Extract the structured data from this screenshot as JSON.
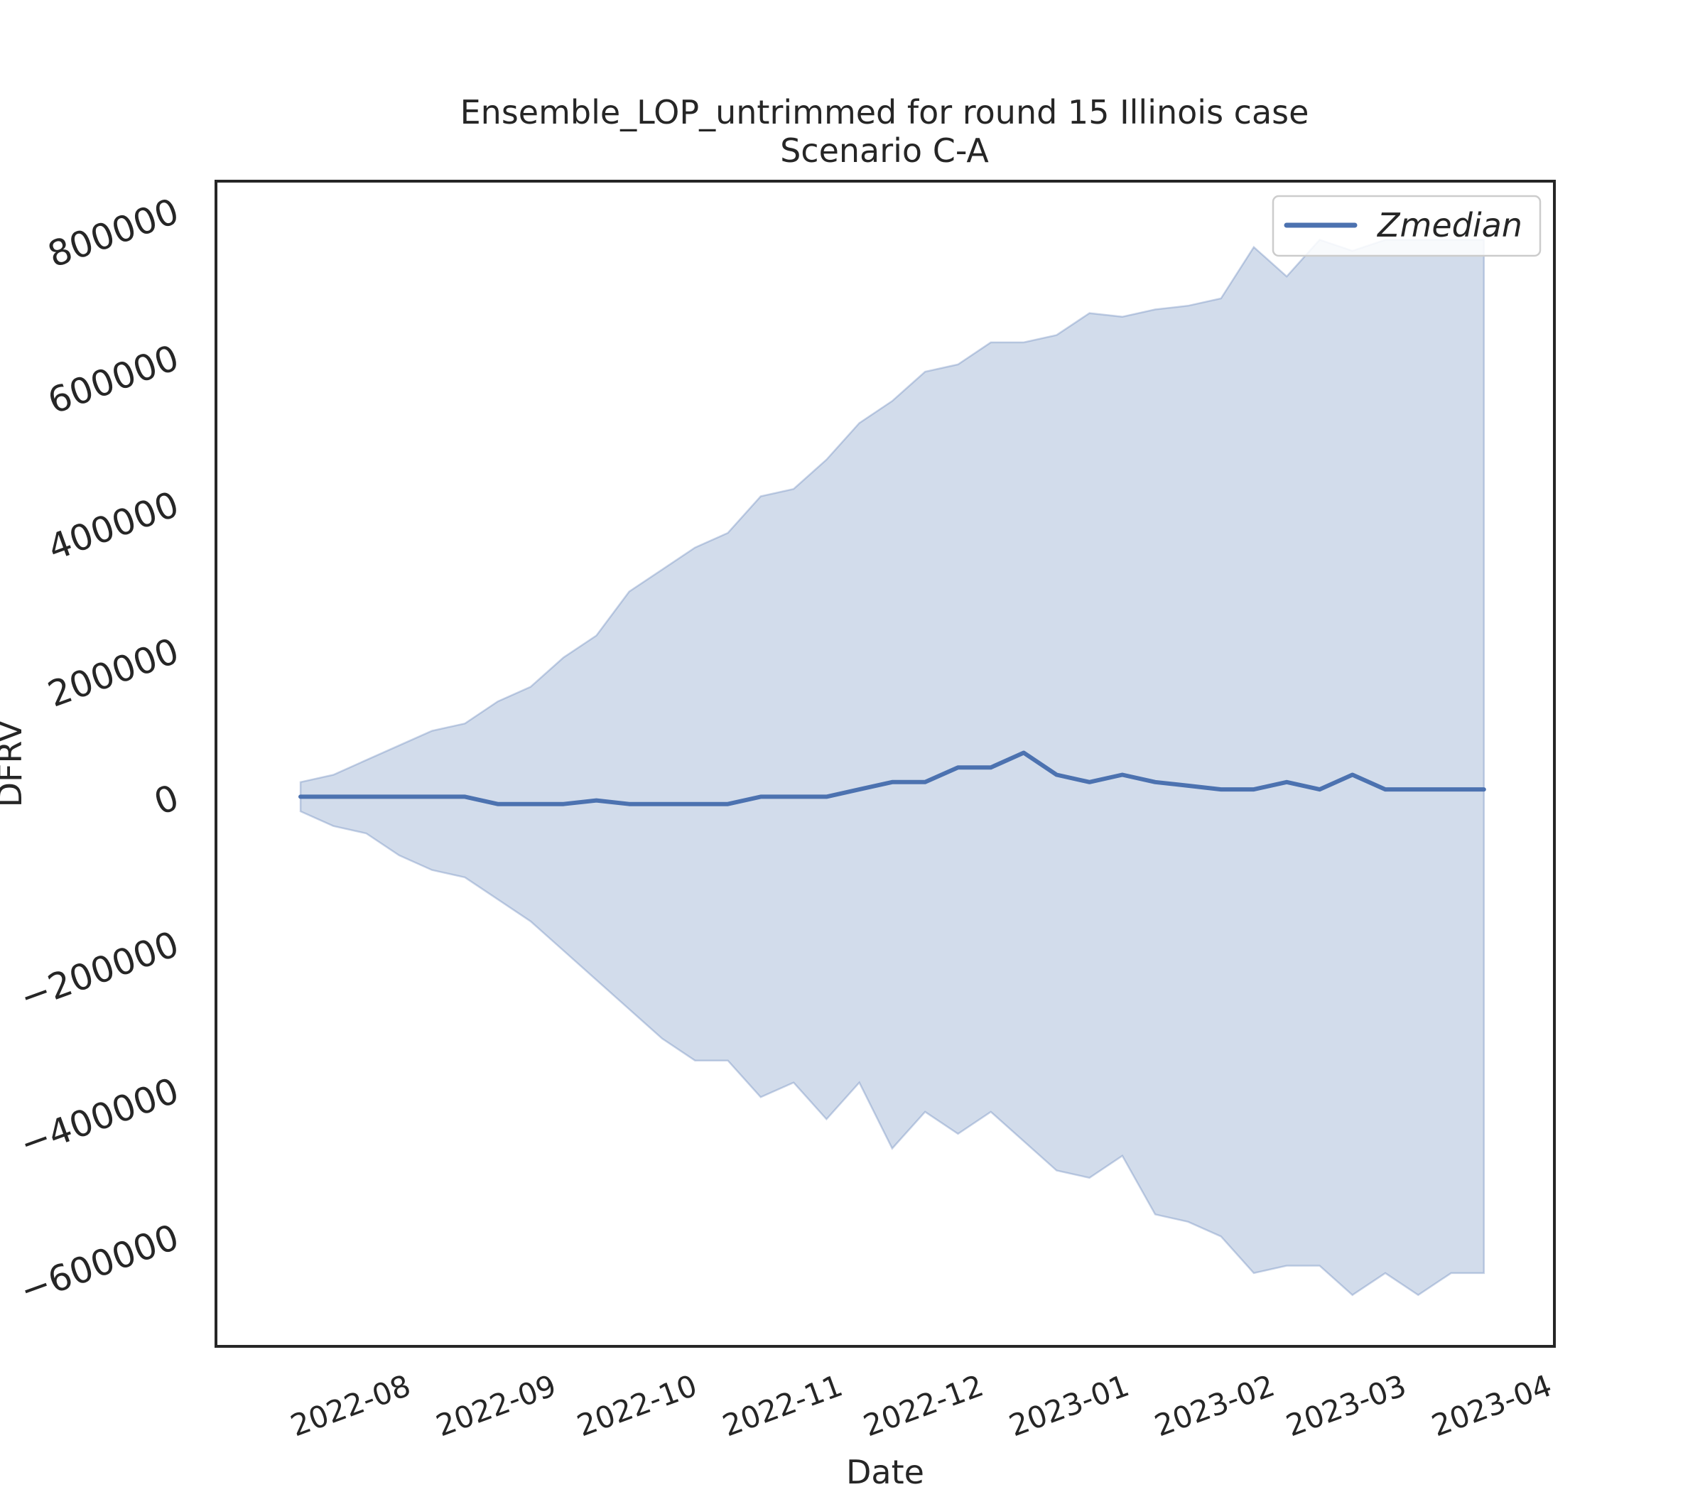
{
  "chart_data": {
    "type": "line",
    "title": "Ensemble_LOP_untrimmed for round 15 Illinois case",
    "subtitle": "Scenario C-A",
    "xlabel": "Date",
    "ylabel": "DFRV",
    "x_tick_labels": [
      "2022-08",
      "2022-09",
      "2022-10",
      "2022-11",
      "2022-12",
      "2023-01",
      "2023-02",
      "2023-03",
      "2023-04"
    ],
    "x_tick_dates": [
      "2022-08-01",
      "2022-09-01",
      "2022-10-01",
      "2022-11-01",
      "2022-12-01",
      "2023-01-01",
      "2023-02-01",
      "2023-03-01",
      "2023-04-01"
    ],
    "y_ticks": [
      -600000,
      -400000,
      -200000,
      0,
      200000,
      400000,
      600000,
      800000
    ],
    "y_tick_labels": [
      "−600000",
      "−400000",
      "−200000",
      "0",
      "200000",
      "400000",
      "600000",
      "800000"
    ],
    "xlim": [
      "2022-06-28",
      "2023-04-09"
    ],
    "ylim": [
      -750000,
      840000
    ],
    "grid": false,
    "legend": {
      "placement": "top-right",
      "entries": [
        "Zmedian"
      ]
    },
    "colors": {
      "line": "#4c72b0",
      "band": "#4c72b0",
      "axes": "#262626"
    },
    "x": [
      "2022-07-16",
      "2022-07-23",
      "2022-07-30",
      "2022-08-06",
      "2022-08-13",
      "2022-08-20",
      "2022-08-27",
      "2022-09-03",
      "2022-09-10",
      "2022-09-17",
      "2022-09-24",
      "2022-10-01",
      "2022-10-08",
      "2022-10-15",
      "2022-10-22",
      "2022-10-29",
      "2022-11-05",
      "2022-11-12",
      "2022-11-19",
      "2022-11-26",
      "2022-12-03",
      "2022-12-10",
      "2022-12-17",
      "2022-12-24",
      "2022-12-31",
      "2023-01-07",
      "2023-01-14",
      "2023-01-21",
      "2023-01-28",
      "2023-02-04",
      "2023-02-11",
      "2023-02-18",
      "2023-02-25",
      "2023-03-04",
      "2023-03-11",
      "2023-03-18",
      "2023-03-25"
    ],
    "series": [
      {
        "name": "Zmedian",
        "values": [
          0,
          0,
          0,
          0,
          0,
          0,
          -10000,
          -10000,
          -10000,
          -5000,
          -10000,
          -10000,
          -10000,
          -10000,
          0,
          0,
          0,
          10000,
          20000,
          20000,
          40000,
          40000,
          60000,
          30000,
          20000,
          30000,
          20000,
          15000,
          10000,
          10000,
          20000,
          10000,
          30000,
          10000,
          10000,
          10000,
          10000
        ]
      }
    ],
    "band": {
      "upper": [
        20000,
        30000,
        50000,
        70000,
        90000,
        100000,
        130000,
        150000,
        190000,
        220000,
        280000,
        310000,
        340000,
        360000,
        410000,
        420000,
        460000,
        510000,
        540000,
        580000,
        590000,
        620000,
        620000,
        630000,
        660000,
        655000,
        665000,
        670000,
        680000,
        750000,
        710000,
        760000,
        745000,
        760000,
        760000,
        760000,
        760000
      ],
      "lower": [
        -20000,
        -40000,
        -50000,
        -80000,
        -100000,
        -110000,
        -140000,
        -170000,
        -210000,
        -250000,
        -290000,
        -330000,
        -360000,
        -360000,
        -410000,
        -390000,
        -440000,
        -390000,
        -480000,
        -430000,
        -460000,
        -430000,
        -470000,
        -510000,
        -520000,
        -490000,
        -570000,
        -580000,
        -600000,
        -650000,
        -640000,
        -640000,
        -680000,
        -650000,
        -680000,
        -650000,
        -650000
      ]
    }
  }
}
